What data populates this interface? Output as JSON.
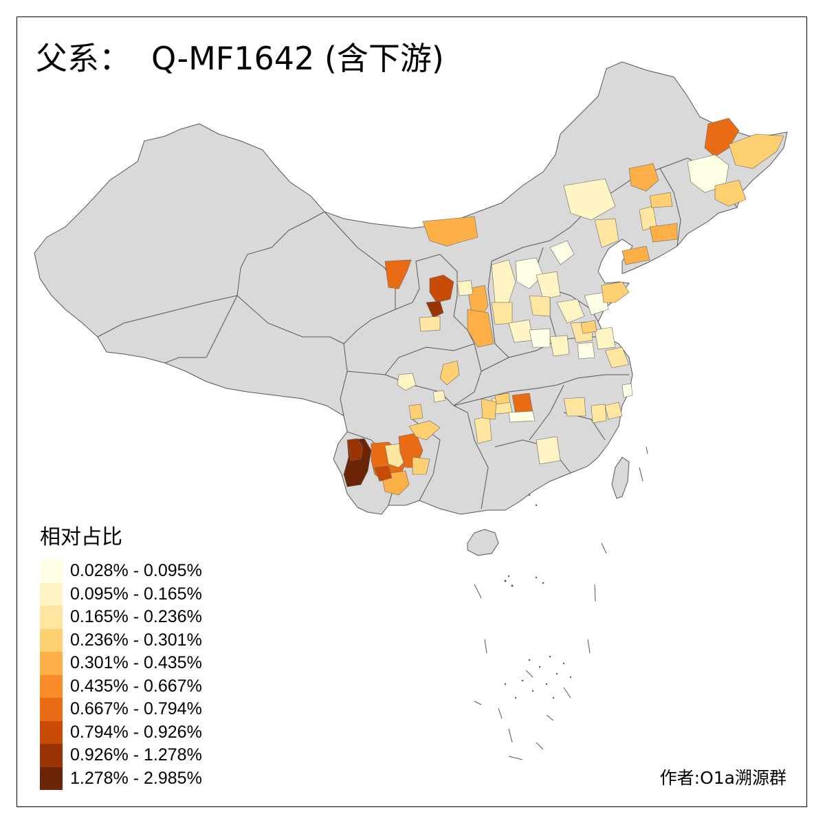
{
  "map": {
    "title_prefix": "父系：",
    "title_main": "Q-MF1642 (含下游)",
    "base_fill": "#d9d9d9",
    "border_color": "#555555"
  },
  "legend": {
    "title": "相对占比",
    "bins": [
      {
        "label": "0.028% - 0.095%",
        "color": "#ffffe5"
      },
      {
        "label": "0.095% - 0.165%",
        "color": "#fff4c4"
      },
      {
        "label": "0.165% - 0.236%",
        "color": "#fee6a0"
      },
      {
        "label": "0.236% - 0.301%",
        "color": "#fed072"
      },
      {
        "label": "0.301% - 0.435%",
        "color": "#fdb047"
      },
      {
        "label": "0.435% - 0.667%",
        "color": "#f88d29"
      },
      {
        "label": "0.667% - 0.794%",
        "color": "#e96b14"
      },
      {
        "label": "0.794% - 0.926%",
        "color": "#c94c06"
      },
      {
        "label": "0.926% - 1.278%",
        "color": "#9a3404"
      },
      {
        "label": "1.278% - 2.985%",
        "color": "#6b2506"
      }
    ]
  },
  "author": "作者:O1a溯源群"
}
